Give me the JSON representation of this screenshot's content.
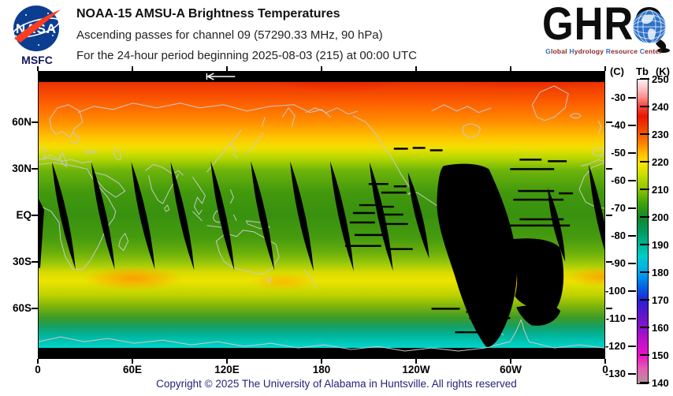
{
  "header": {
    "nasa": {
      "wordmark": "NASA",
      "center": "MSFC"
    },
    "title": "NOAA-15 AMSU-A Brightness Temperatures",
    "subtitle": "Ascending passes for channel 09 (57290.33 MHz, 90 hPa)",
    "period": "For the 24-hour period beginning 2025-08-03 (215) at 00:00 UTC",
    "ghrc": {
      "wordmark": "GHRC",
      "tagline_words": [
        {
          "initial": "G",
          "rest": "lobal"
        },
        {
          "initial": "H",
          "rest": "ydrology"
        },
        {
          "initial": "R",
          "rest": "esource"
        },
        {
          "initial": "C",
          "rest": "enter"
        }
      ],
      "tagline_initial_color": "#2e6fc2",
      "tagline_rest_color": "#8b2727"
    }
  },
  "map": {
    "lat_labels": [
      "60N",
      "30N",
      "EQ",
      "30S",
      "60S"
    ],
    "lon_labels": [
      "0",
      "60E",
      "120E",
      "180",
      "120W",
      "60W",
      "0"
    ]
  },
  "colorbar": {
    "unit_left": "(C)",
    "quantity": "Tb",
    "unit_right": "(K)",
    "kelvin_ticks": [
      250,
      240,
      230,
      220,
      210,
      200,
      190,
      180,
      170,
      160,
      150,
      140
    ],
    "celsius_ticks": [
      -30,
      -40,
      -50,
      -60,
      -70,
      -80,
      -90,
      -100,
      -110,
      -120,
      -130
    ]
  },
  "footer": {
    "copyright": "Copyright © 2025 The University of Alabama in Huntsville.  All rights reserved",
    "color": "#23237a"
  },
  "chart_data": {
    "type": "heatmap",
    "title": "NOAA-15 AMSU-A Brightness Temperatures",
    "subtitle": "Ascending passes for channel 09 (57290.33 MHz, 90 hPa)",
    "period": "For the 24-hour period beginning 2025-08-03 (215) at 00:00 UTC",
    "satellite": "NOAA-15",
    "instrument": "AMSU-A",
    "channel": "09",
    "frequency_mhz": 57290.33,
    "pressure_level_hpa": 90,
    "date": "2025-08-03",
    "day_of_year": 215,
    "start_time_utc": "00:00",
    "projection": "equirectangular global map, longitude 0 eastward through 180 back to 0, latitude 90N to 90S",
    "x_axis": {
      "tick_labels": [
        "0",
        "60E",
        "120E",
        "180",
        "120W",
        "60W",
        "0"
      ],
      "tick_degrees_east": [
        0,
        60,
        120,
        180,
        240,
        300,
        360
      ]
    },
    "y_axis": {
      "tick_labels": [
        "60N",
        "30N",
        "EQ",
        "30S",
        "60S"
      ],
      "tick_degrees_lat": [
        60,
        30,
        0,
        -30,
        -60
      ]
    },
    "colorbar": {
      "quantity": "Tb (brightness temperature)",
      "kelvin_range": [
        140,
        250
      ],
      "kelvin_ticks": [
        250,
        240,
        230,
        220,
        210,
        200,
        190,
        180,
        170,
        160,
        150,
        140
      ],
      "celsius_ticks": [
        -30,
        -40,
        -50,
        -60,
        -70,
        -80,
        -90,
        -100,
        -110,
        -120,
        -130
      ],
      "scale_colors_250K_to_140K": [
        "#fdeef1",
        "#f84c42",
        "#e91600",
        "#fd8400",
        "#ffe400",
        "#86c303",
        "#3aa00a",
        "#17862b",
        "#00b795",
        "#00a6ee",
        "#2721d6",
        "#8c12c9",
        "#ea12c6",
        "#b7929b"
      ]
    },
    "zonal_pattern_estimates_k": [
      {
        "latitude": "75N-82N",
        "tb": 237
      },
      {
        "latitude": "60N",
        "tb": 227
      },
      {
        "latitude": "45N",
        "tb": 220
      },
      {
        "latitude": "30N to 25S",
        "tb": 211
      },
      {
        "latitude": "35S subtropical warm band",
        "tb": 221
      },
      {
        "latitude": "warm spots near 35S (S Atlantic, S Indian, S Pacific)",
        "tb": 225
      },
      {
        "latitude": "55S",
        "tb": 212
      },
      {
        "latitude": "65S",
        "tb": 200
      },
      {
        "latitude": "70S-82S",
        "tb": 190
      }
    ],
    "no_data": "Black regions: ~10 narrow diagonal inter-orbit gaps between about 30N and 40S spaced roughly 25 degrees of longitude apart, one large missing-data swath over eastern North America and South America (~100W-35W) with horizontal dropout scan lines around it, plus black strips along the top and bottom edges of the map",
    "grid": false,
    "legend_position": "right colorbar"
  }
}
